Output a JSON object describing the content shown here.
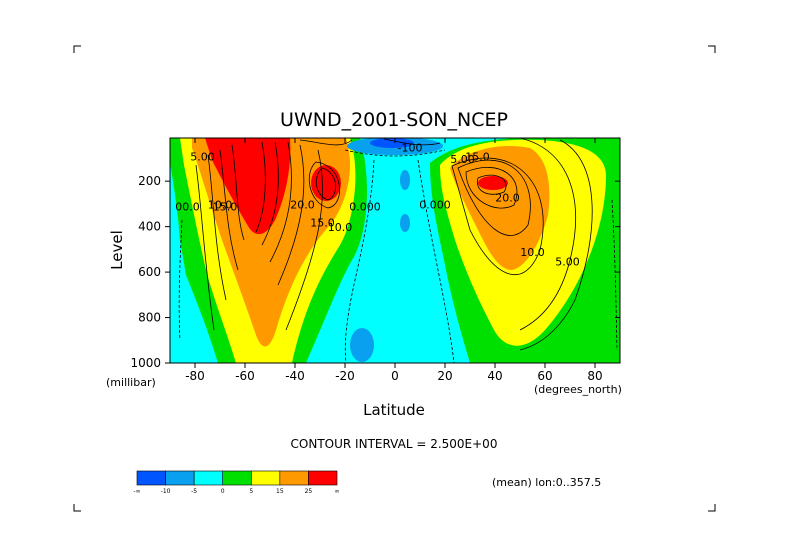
{
  "chart_data": {
    "type": "contour",
    "title": "UWND_2001-SON_NCEP",
    "xlabel": "Latitude",
    "ylabel": "Level",
    "x_unit_label": "(degrees_north)",
    "y_unit_label": "(millibar)",
    "x_ticks": [
      -80,
      -60,
      -40,
      -20,
      0,
      20,
      40,
      60,
      80
    ],
    "y_ticks": [
      200,
      400,
      600,
      800,
      1000
    ],
    "xlim": [
      -90,
      90
    ],
    "ylim": [
      1000,
      10
    ],
    "y_reversed": true,
    "contour_interval_label": "CONTOUR INTERVAL = 2.500E+00",
    "subtitle_note": "(mean) lon:0..357.5",
    "contour_labels": [
      {
        "text": "5.00",
        "lat": -77,
        "lev": 110
      },
      {
        "text": "10.0",
        "lat": -70,
        "lev": 320
      },
      {
        "text": "15.0",
        "lat": -68,
        "lev": 330
      },
      {
        "text": "00.0",
        "lat": -83,
        "lev": 330
      },
      {
        "text": "20.0",
        "lat": -37,
        "lev": 320
      },
      {
        "text": "15.0",
        "lat": -29,
        "lev": 400
      },
      {
        "text": "10.0",
        "lat": -22,
        "lev": 420
      },
      {
        "text": "0.000",
        "lat": -12,
        "lev": 330
      },
      {
        "text": "0.000",
        "lat": 16,
        "lev": 320
      },
      {
        "text": "-100",
        "lat": 6,
        "lev": 70
      },
      {
        "text": "5.00",
        "lat": 27,
        "lev": 120
      },
      {
        "text": "15.0",
        "lat": 33,
        "lev": 110
      },
      {
        "text": "20.0",
        "lat": 45,
        "lev": 290
      },
      {
        "text": "10.0",
        "lat": 55,
        "lev": 530
      },
      {
        "text": "5.00",
        "lat": 69,
        "lev": 570
      }
    ],
    "colorbar": {
      "colors": [
        "#0055ff",
        "#0aa0f0",
        "#00ffff",
        "#00e000",
        "#ffff00",
        "#ff9900",
        "#ff0000"
      ],
      "labels": [
        "-∞",
        "-10",
        "-5",
        "0",
        "5",
        "15",
        "25",
        "∞"
      ]
    }
  }
}
